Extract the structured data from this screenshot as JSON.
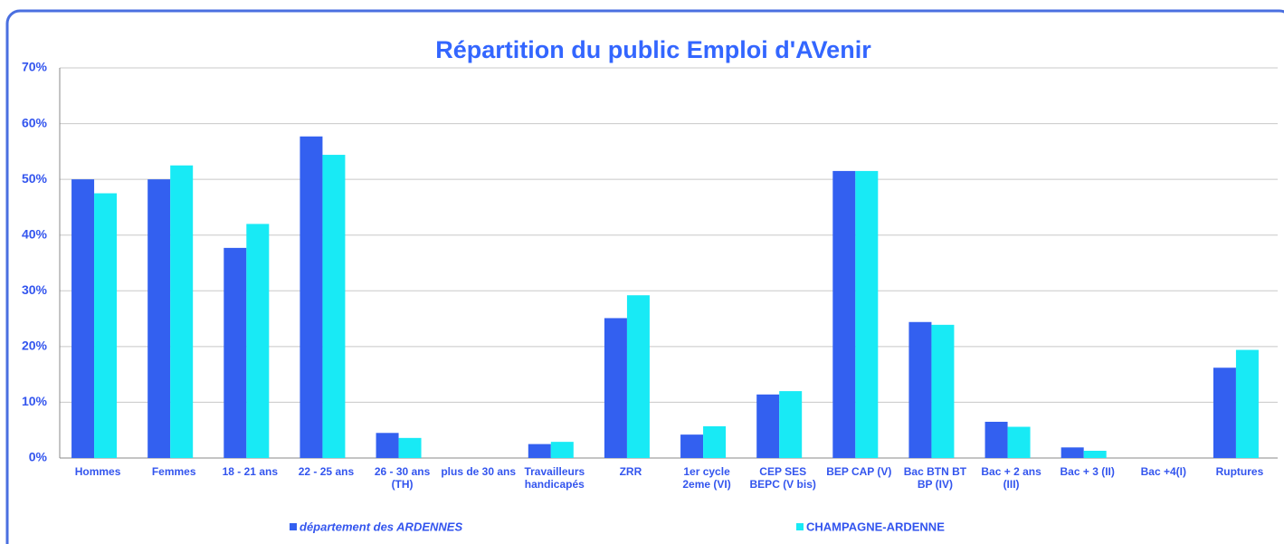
{
  "chart_data": {
    "type": "bar",
    "title": "Répartition du public Emploi d'AVenir",
    "categories": [
      "Hommes",
      "Femmes",
      "18 - 21 ans",
      "22 - 25 ans",
      "26 - 30 ans (TH)",
      "plus de 30 ans",
      "Travailleurs handicapés",
      "ZRR",
      "1er cycle 2eme (VI)",
      "CEP SES BEPC (V bis)",
      "BEP CAP (V)",
      "Bac BTN BT BP (IV)",
      "Bac + 2 ans (III)",
      "Bac + 3 (II)",
      "Bac +4(I)",
      "Ruptures"
    ],
    "series": [
      {
        "name": "département des ARDENNES",
        "color": "#3360f0",
        "values": [
          50,
          50,
          37.7,
          57.7,
          4.5,
          0,
          2.5,
          25.1,
          4.2,
          11.4,
          51.5,
          24.4,
          6.5,
          1.9,
          0,
          16.2
        ]
      },
      {
        "name": "CHAMPAGNE-ARDENNE",
        "color": "#18eaf5",
        "values": [
          47.5,
          52.5,
          42,
          54.4,
          3.6,
          0,
          2.9,
          29.2,
          5.7,
          12,
          51.5,
          23.9,
          5.6,
          1.3,
          0,
          19.4
        ]
      }
    ],
    "ylim": [
      0,
      70
    ],
    "yticks": [
      {
        "value": 0,
        "label": "0%"
      },
      {
        "value": 10,
        "label": "10%"
      },
      {
        "value": 20,
        "label": "20%"
      },
      {
        "value": 30,
        "label": "30%"
      },
      {
        "value": 40,
        "label": "40%"
      },
      {
        "value": 50,
        "label": "50%"
      },
      {
        "value": 60,
        "label": "60%"
      },
      {
        "value": 70,
        "label": "70%"
      }
    ],
    "grid": true
  }
}
